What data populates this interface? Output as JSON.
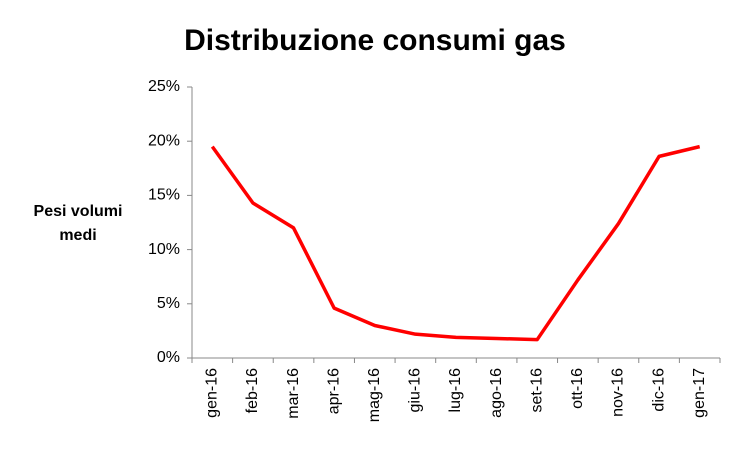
{
  "chart_data": {
    "type": "line",
    "title": "Distribuzione consumi gas",
    "y_label": "Pesi volumi medi",
    "categories": [
      "gen-16",
      "feb-16",
      "mar-16",
      "apr-16",
      "mag-16",
      "giu-16",
      "lug-16",
      "ago-16",
      "set-16",
      "ott-16",
      "nov-16",
      "dic-16",
      "gen-17"
    ],
    "values": [
      19.5,
      14.3,
      12.0,
      4.6,
      3.0,
      2.2,
      1.9,
      1.8,
      1.7,
      7.2,
      12.4,
      18.6,
      19.5
    ],
    "color": "#ff0000",
    "ylim": [
      0,
      25
    ],
    "yticks": [
      {
        "value": 0,
        "label": "0%"
      },
      {
        "value": 5,
        "label": "5%"
      },
      {
        "value": 10,
        "label": "10%"
      },
      {
        "value": 15,
        "label": "15%"
      },
      {
        "value": 20,
        "label": "20%"
      },
      {
        "value": 25,
        "label": "25%"
      }
    ],
    "grid": false
  }
}
